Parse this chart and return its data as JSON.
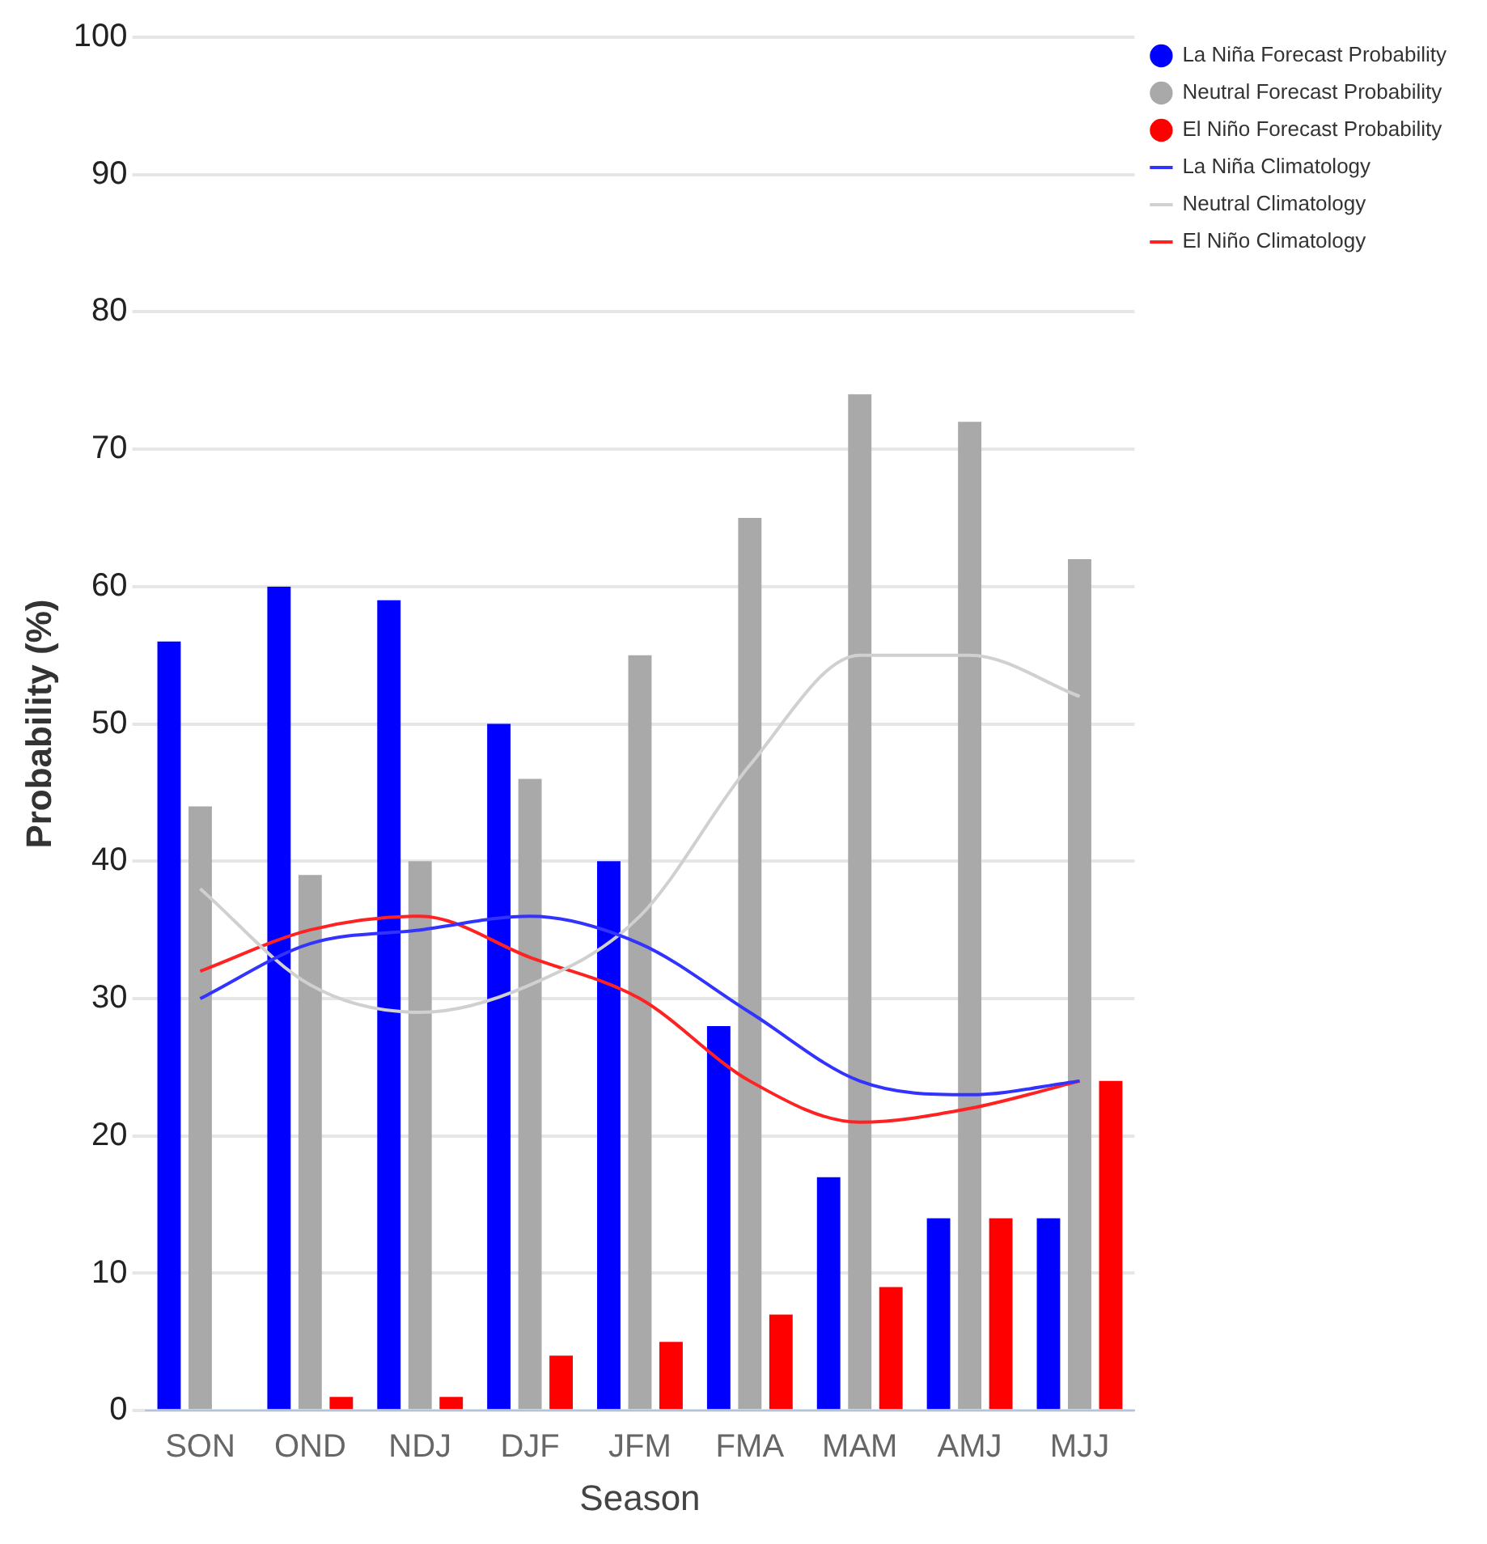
{
  "chart_data": {
    "type": "bar",
    "xlabel": "Season",
    "ylabel": "Probability (%)",
    "categories": [
      "SON",
      "OND",
      "NDJ",
      "DJF",
      "JFM",
      "FMA",
      "MAM",
      "AMJ",
      "MJJ"
    ],
    "series": [
      {
        "name": "La Niña Forecast Probability",
        "color": "#0000ff",
        "values": [
          56,
          60,
          59,
          50,
          40,
          28,
          17,
          14,
          14
        ]
      },
      {
        "name": "Neutral Forecast Probability",
        "color": "#a9a9a9",
        "values": [
          44,
          39,
          40,
          46,
          55,
          65,
          74,
          72,
          62
        ]
      },
      {
        "name": "El Niño Forecast Probability",
        "color": "#ff0000",
        "values": [
          0,
          1,
          1,
          4,
          5,
          7,
          9,
          14,
          24
        ]
      },
      {
        "name": "La Niña Climatology",
        "type": "line",
        "color": "#3333ff",
        "values": [
          30,
          34,
          35,
          36,
          34,
          29,
          24,
          23,
          24
        ]
      },
      {
        "name": "Neutral Climatology",
        "type": "line",
        "color": "#d0d0d0",
        "values": [
          38,
          31,
          29,
          31,
          36,
          47,
          55,
          55,
          52
        ]
      },
      {
        "name": "El Niño Climatology",
        "type": "line",
        "color": "#ff2222",
        "values": [
          32,
          35,
          36,
          33,
          30,
          24,
          21,
          22,
          24
        ]
      }
    ],
    "ylim": [
      0,
      100
    ],
    "yticks": [
      0,
      10,
      20,
      30,
      40,
      50,
      60,
      70,
      80,
      90,
      100
    ],
    "grid": "y",
    "legend": "top right",
    "marker": "none",
    "line_style": "solid"
  }
}
